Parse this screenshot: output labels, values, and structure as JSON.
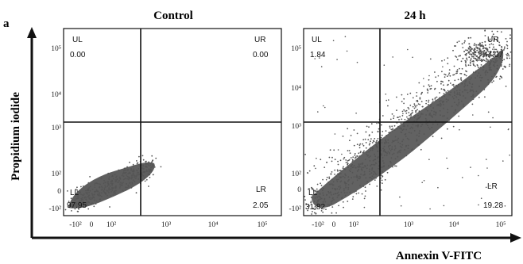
{
  "figure": {
    "panel_letter": "a",
    "ylabel": "Propidium iodide",
    "xlabel": "Annexin V-FITC"
  },
  "chart_data": [
    {
      "type": "scatter",
      "title": "Control",
      "xlabel": "Annexin V-FITC",
      "ylabel": "Propidium iodide",
      "x_ticks": [
        "-10²",
        "0",
        "10²",
        "10³",
        "10⁴",
        "10⁵"
      ],
      "y_ticks": [
        "10⁵",
        "10⁴",
        "10³",
        "10²",
        "0",
        "-10²"
      ],
      "quadrants": [
        {
          "name": "UL",
          "value": "0.00"
        },
        {
          "name": "UR",
          "value": "0.00"
        },
        {
          "name": "LL",
          "value": "97.95"
        },
        {
          "name": "LR",
          "value": "2.05"
        }
      ],
      "point_color": "#555555"
    },
    {
      "type": "scatter",
      "title": "24 h",
      "xlabel": "Annexin V-FITC",
      "ylabel": "Propidium iodide",
      "x_ticks": [
        "-10²",
        "0",
        "10²",
        "10³",
        "10⁴",
        "10⁵"
      ],
      "y_ticks": [
        "10⁵",
        "10⁴",
        "10³",
        "10²",
        "0",
        "-10²"
      ],
      "quadrants": [
        {
          "name": "UL",
          "value": "1.84"
        },
        {
          "name": "UR",
          "value": "47.07"
        },
        {
          "name": "LL",
          "value": "31.82"
        },
        {
          "name": "LR",
          "value": "19.28"
        }
      ],
      "point_color": "#555555"
    }
  ]
}
